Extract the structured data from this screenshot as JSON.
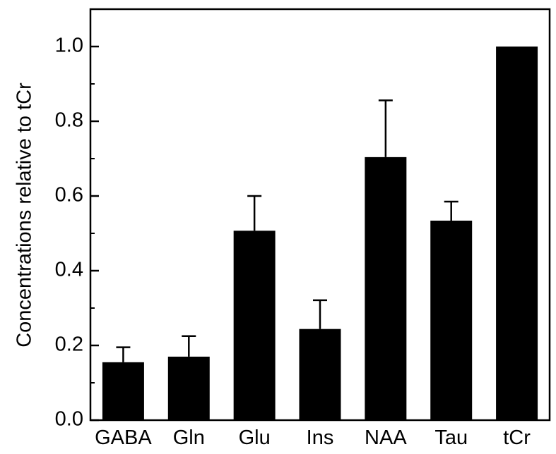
{
  "chart_data": {
    "type": "bar",
    "title": "",
    "xlabel": "",
    "ylabel": "Concentrations relative to tCr",
    "categories": [
      "GABA",
      "Gln",
      "Glu",
      "Ins",
      "NAA",
      "Tau",
      "tCr"
    ],
    "values": [
      0.155,
      0.17,
      0.507,
      0.244,
      0.704,
      0.534,
      1.0
    ],
    "error_plus": [
      0.04,
      0.055,
      0.093,
      0.077,
      0.152,
      0.051,
      0.0
    ],
    "ylim": [
      0,
      1.1
    ],
    "yticks": [
      "0.0",
      "0.2",
      "0.4",
      "0.6",
      "0.8",
      "1.0"
    ],
    "ytick_values": [
      0,
      0.2,
      0.4,
      0.6,
      0.8,
      1.0
    ],
    "grid": false,
    "legend": "none",
    "bar_color": "#000000"
  }
}
